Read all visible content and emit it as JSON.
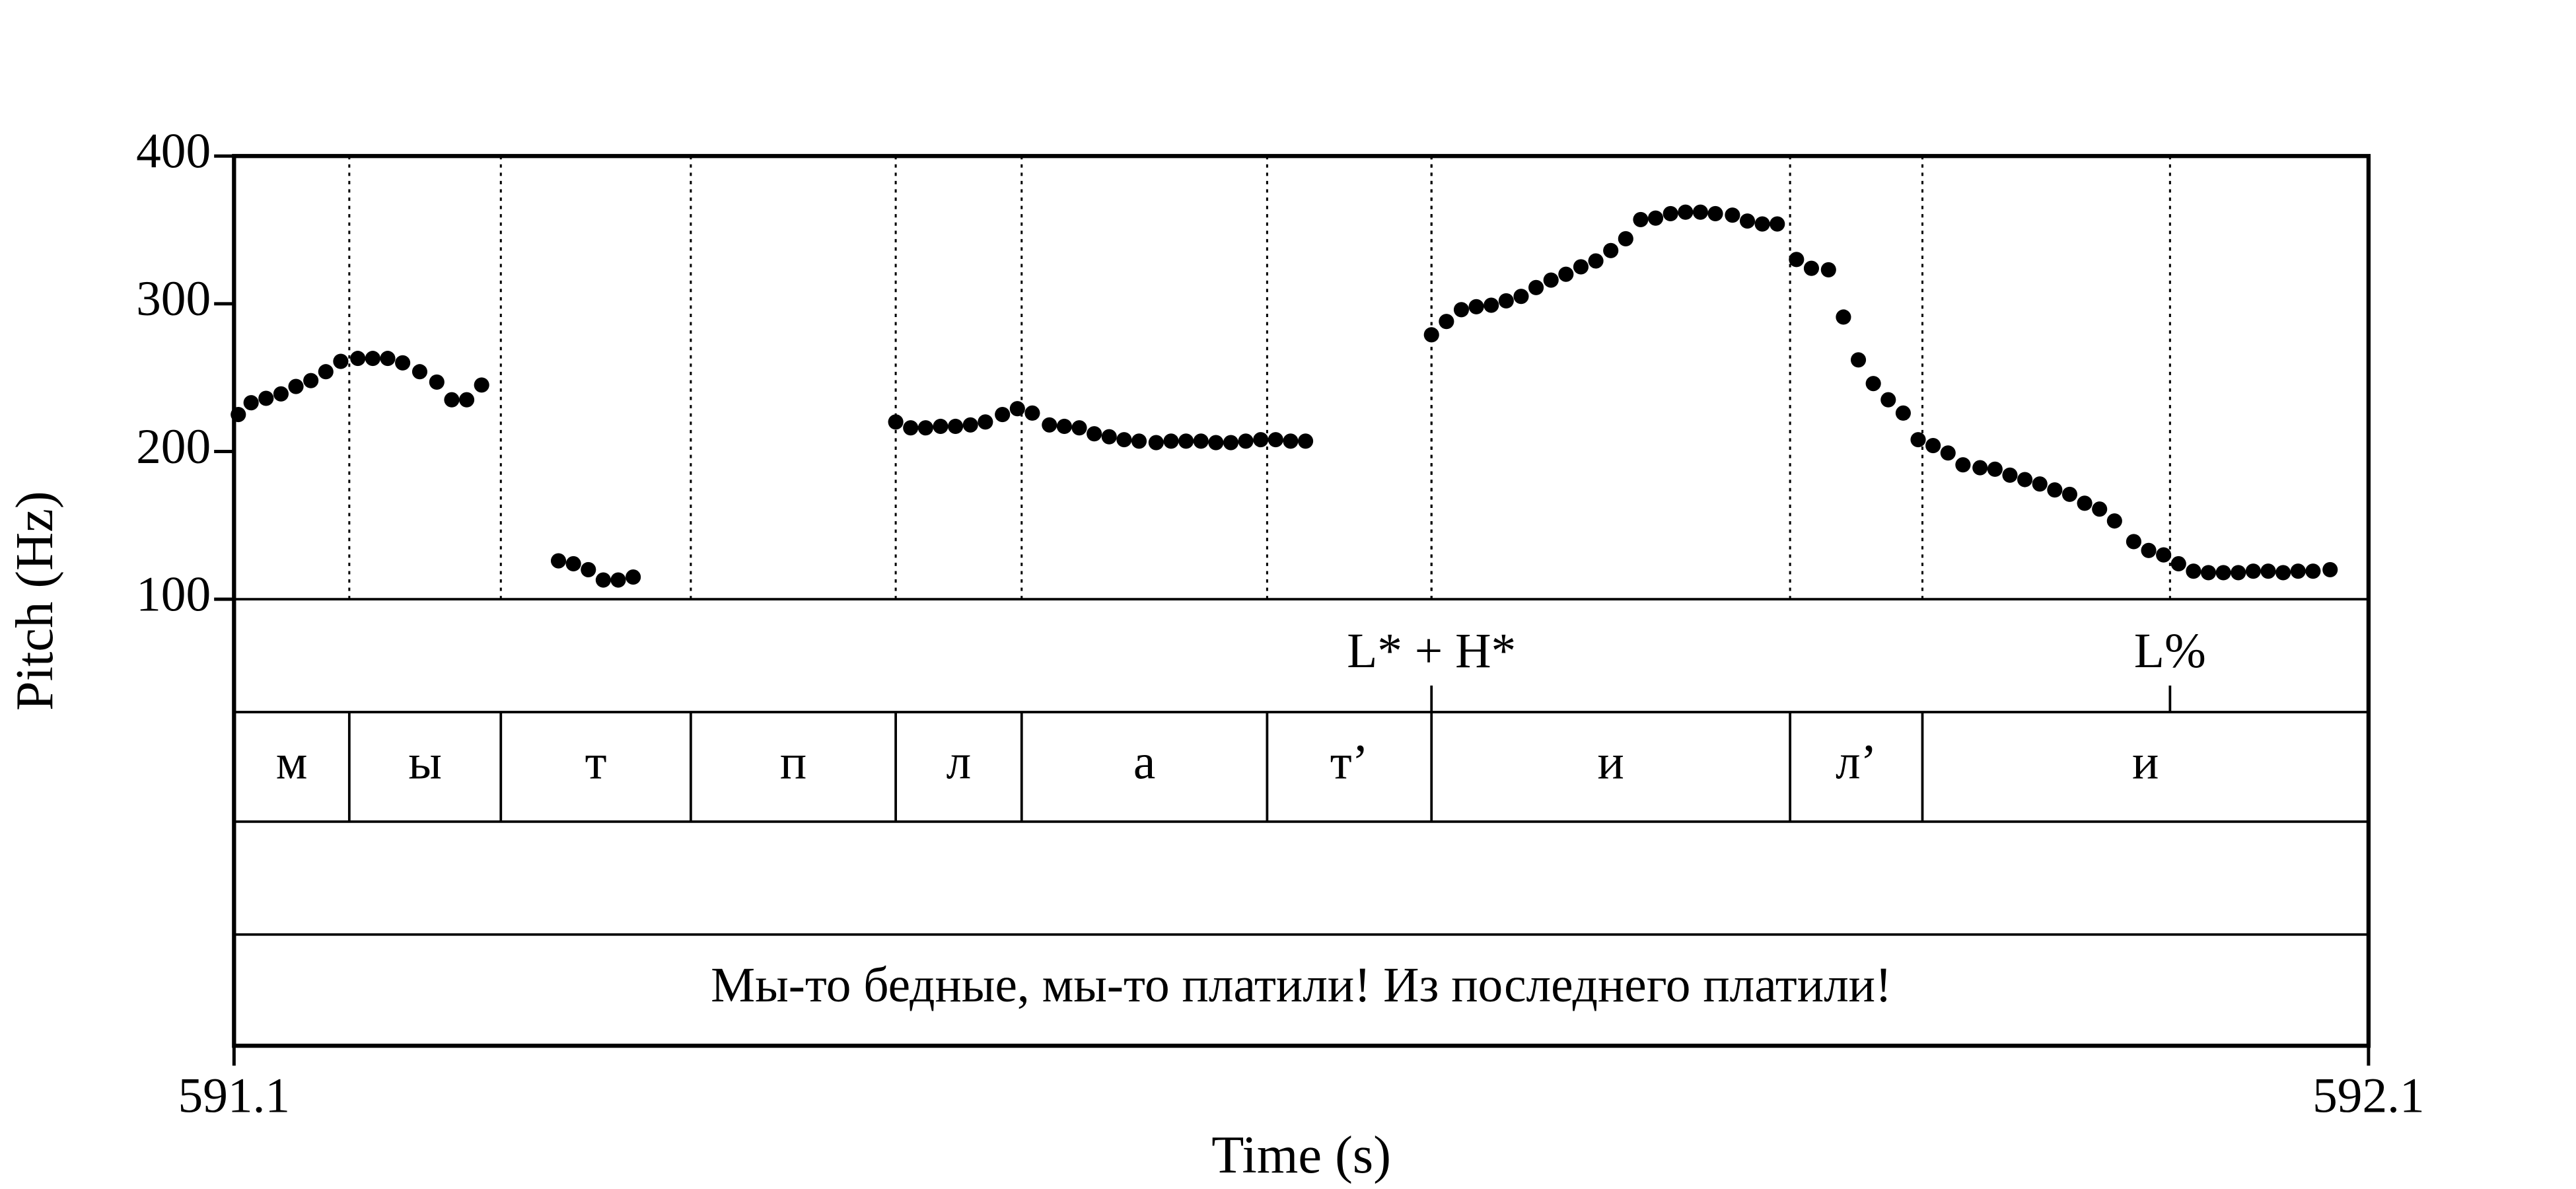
{
  "chart_data": {
    "type": "scatter",
    "xlabel": "Time (s)",
    "ylabel": "Pitch (Hz)",
    "xlim": [
      591.1,
      592.1
    ],
    "xticks": [
      591.1,
      592.1
    ],
    "ylim": [
      100,
      400
    ],
    "yticks": [
      100,
      200,
      300,
      400
    ],
    "color": "#000000",
    "x": [
      591.102,
      591.108,
      591.115,
      591.122,
      591.129,
      591.136,
      591.143,
      591.15,
      591.158,
      591.165,
      591.172,
      591.179,
      591.187,
      591.195,
      591.202,
      591.209,
      591.216,
      591.252,
      591.259,
      591.266,
      591.273,
      591.28,
      591.287,
      591.41,
      591.417,
      591.424,
      591.431,
      591.438,
      591.445,
      591.452,
      591.46,
      591.467,
      591.474,
      591.482,
      591.489,
      591.496,
      591.503,
      591.51,
      591.517,
      591.524,
      591.532,
      591.539,
      591.546,
      591.553,
      591.56,
      591.567,
      591.574,
      591.581,
      591.588,
      591.595,
      591.602,
      591.661,
      591.668,
      591.675,
      591.682,
      591.689,
      591.696,
      591.703,
      591.71,
      591.717,
      591.724,
      591.731,
      591.738,
      591.745,
      591.752,
      591.759,
      591.766,
      591.773,
      591.78,
      591.787,
      591.794,
      591.802,
      591.809,
      591.816,
      591.823,
      591.832,
      591.839,
      591.847,
      591.854,
      591.861,
      591.868,
      591.875,
      591.882,
      591.889,
      591.896,
      591.903,
      591.91,
      591.918,
      591.925,
      591.932,
      591.939,
      591.946,
      591.953,
      591.96,
      591.967,
      591.974,
      591.981,
      591.99,
      591.997,
      592.004,
      592.011,
      592.018,
      592.025,
      592.032,
      592.039,
      592.046,
      592.053,
      592.06,
      592.067,
      592.074,
      592.082
    ],
    "values": [
      225,
      233,
      236,
      239,
      244,
      248,
      254,
      261,
      263,
      263,
      263,
      260,
      254,
      247,
      235,
      235,
      245,
      126,
      124,
      120,
      113,
      113,
      115,
      220,
      216,
      216,
      217,
      217,
      218,
      220,
      225,
      229,
      226,
      218,
      217,
      216,
      212,
      210,
      208,
      207,
      206,
      207,
      207,
      207,
      206,
      206,
      207,
      208,
      208,
      207,
      207,
      279,
      288,
      296,
      298,
      299,
      302,
      305,
      311,
      316,
      320,
      325,
      329,
      336,
      344,
      357,
      358,
      361,
      362,
      362,
      361,
      360,
      356,
      354,
      354,
      330,
      324,
      323,
      291,
      262,
      246,
      235,
      226,
      208,
      204,
      199,
      191,
      189,
      188,
      184,
      181,
      178,
      174,
      171,
      165,
      161,
      153,
      139,
      133,
      130,
      124,
      119,
      118,
      118,
      118,
      119,
      119,
      118,
      119,
      119,
      120
    ],
    "tiers": [
      {
        "points": [
          591.661,
          592.007
        ],
        "labels": [
          "L* + H*",
          "L%"
        ]
      },
      {
        "boundaries": [
          591.1,
          591.154,
          591.225,
          591.314,
          591.41,
          591.469,
          591.584,
          591.661,
          591.829,
          591.891,
          592.1
        ],
        "labels": [
          "м",
          "ы",
          "т",
          "п",
          "л",
          "а",
          "т’",
          "и",
          "л’",
          "и"
        ]
      },
      {
        "boundaries": [
          591.1,
          592.1
        ],
        "labels": [
          "Мы-то бедные, мы-то платили! Из последнего платили!"
        ]
      }
    ]
  }
}
